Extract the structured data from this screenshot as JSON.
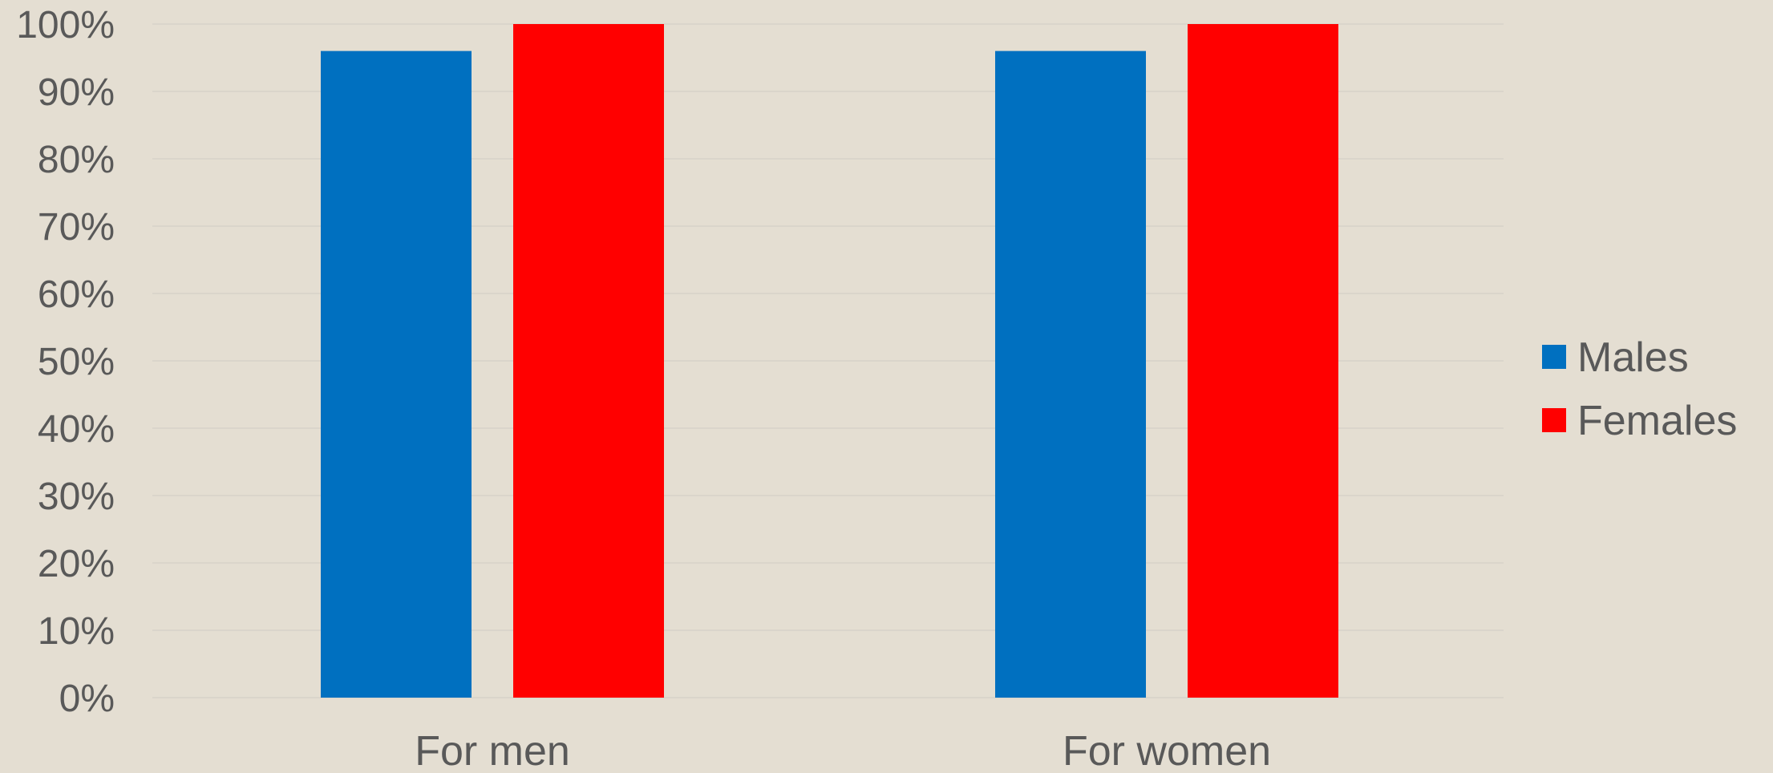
{
  "chart_data": {
    "type": "bar",
    "categories": [
      "For men",
      "For women"
    ],
    "series": [
      {
        "name": "Males",
        "color": "#0070C0",
        "values": [
          96,
          96
        ]
      },
      {
        "name": "Females",
        "color": "#FF0000",
        "values": [
          100,
          100
        ]
      }
    ],
    "ylim": [
      0,
      100
    ],
    "yticks": [
      0,
      10,
      20,
      30,
      40,
      50,
      60,
      70,
      80,
      90,
      100
    ],
    "ytick_suffix": "%",
    "grid": true,
    "legend": "right",
    "background": "#E4DED2",
    "xlabel": "",
    "ylabel": "",
    "title": ""
  }
}
